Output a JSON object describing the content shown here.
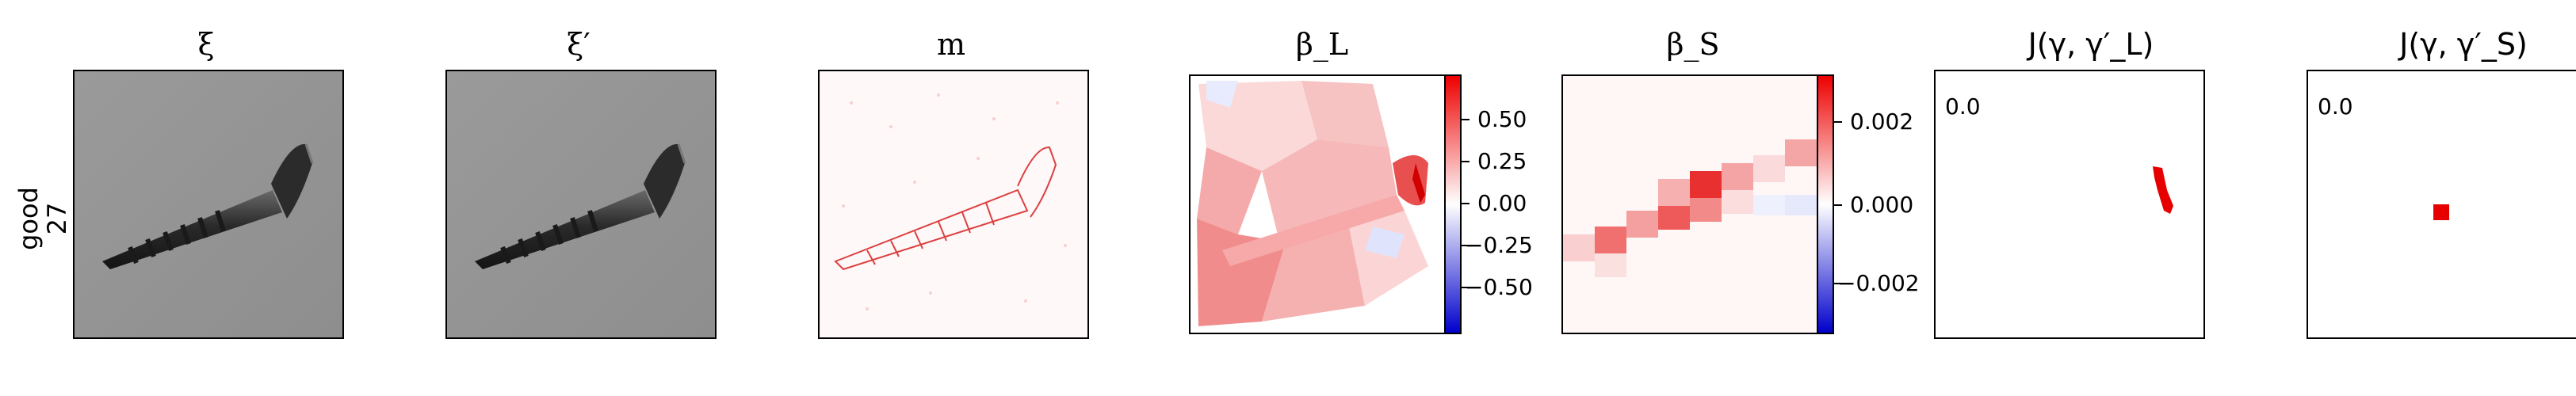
{
  "row": {
    "label_line1": "good",
    "label_line2": "27"
  },
  "panels": {
    "xi": {
      "title": "ξ",
      "image": "screw-grayscale"
    },
    "xi_prime": {
      "title": "ξ′",
      "image": "screw-grayscale"
    },
    "m": {
      "title": "m",
      "image": "red-speckle-heatmap-of-screw"
    },
    "beta_L": {
      "title": "β_L",
      "image": "red-blue-superpixel-heatmap"
    },
    "beta_S": {
      "title": "β_S",
      "image": "red-blue-patch-heatmap"
    },
    "J_L": {
      "title": "J(γ, γ′_L)",
      "value": "0.0",
      "image": "small-red-blob"
    },
    "J_S": {
      "title": "J(γ, γ′_S)",
      "value": "0.0",
      "image": "small-red-square"
    }
  },
  "colorbars": {
    "beta_L": {
      "colors": {
        "max": "#ee0000",
        "mid": "#ffffff",
        "min": "#0000cc"
      },
      "ticks": [
        "0.50",
        "0.25",
        "0.00",
        "−0.25",
        "−0.50"
      ]
    },
    "beta_S": {
      "colors": {
        "max": "#ee0000",
        "mid": "#ffffff",
        "min": "#0000cc"
      },
      "ticks": [
        "0.002",
        "0.000",
        "−0.002"
      ]
    }
  }
}
